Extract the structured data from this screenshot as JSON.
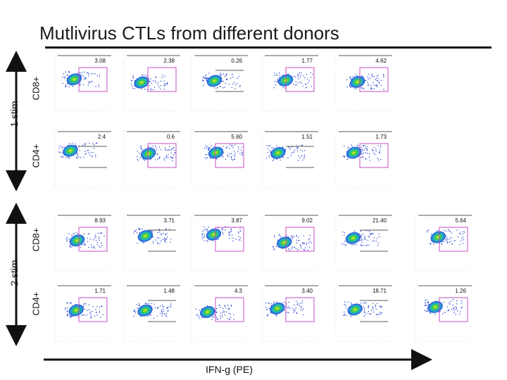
{
  "title": "Mutlivirus CTLs from different donors",
  "y_groups": [
    {
      "label": "1 stim",
      "rows": [
        "CD8+",
        "CD4+"
      ]
    },
    {
      "label": "2 stim",
      "rows": [
        "CD8+",
        "CD4+"
      ]
    }
  ],
  "x_axis_label": "IFN-g (PE)",
  "colors": {
    "gate": "#c03cc0",
    "dots": "#2040d0",
    "core_mid": "#22c060",
    "core_hot": "#e0e020",
    "arrow": "#111111"
  },
  "chart_data": {
    "type": "scatter",
    "title": "Mutlivirus CTLs from different donors",
    "xlabel": "IFN-g (PE)",
    "ylabel": "",
    "panels": [
      {
        "group": "1 stim",
        "row": "CD8+",
        "col": 1,
        "gate_percent": "3.08"
      },
      {
        "group": "1 stim",
        "row": "CD8+",
        "col": 2,
        "gate_percent": "2.38"
      },
      {
        "group": "1 stim",
        "row": "CD8+",
        "col": 3,
        "gate_percent": "0.26"
      },
      {
        "group": "1 stim",
        "row": "CD8+",
        "col": 4,
        "gate_percent": "1.77"
      },
      {
        "group": "1 stim",
        "row": "CD8+",
        "col": 5,
        "gate_percent": "4.62"
      },
      {
        "group": "1 stim",
        "row": "CD4+",
        "col": 1,
        "gate_percent": "2.4"
      },
      {
        "group": "1 stim",
        "row": "CD4+",
        "col": 2,
        "gate_percent": "0.6"
      },
      {
        "group": "1 stim",
        "row": "CD4+",
        "col": 3,
        "gate_percent": "5.60"
      },
      {
        "group": "1 stim",
        "row": "CD4+",
        "col": 4,
        "gate_percent": "1.51"
      },
      {
        "group": "1 stim",
        "row": "CD4+",
        "col": 5,
        "gate_percent": "1.73"
      },
      {
        "group": "2 stim",
        "row": "CD8+",
        "col": 1,
        "gate_percent": "8.93"
      },
      {
        "group": "2 stim",
        "row": "CD8+",
        "col": 2,
        "gate_percent": "3.71"
      },
      {
        "group": "2 stim",
        "row": "CD8+",
        "col": 3,
        "gate_percent": "3.87"
      },
      {
        "group": "2 stim",
        "row": "CD8+",
        "col": 4,
        "gate_percent": "9.02"
      },
      {
        "group": "2 stim",
        "row": "CD8+",
        "col": 5,
        "gate_percent": "21.40"
      },
      {
        "group": "2 stim",
        "row": "CD8+",
        "col": 6,
        "gate_percent": "5.64"
      },
      {
        "group": "2 stim",
        "row": "CD4+",
        "col": 1,
        "gate_percent": "1.71"
      },
      {
        "group": "2 stim",
        "row": "CD4+",
        "col": 2,
        "gate_percent": "1.48"
      },
      {
        "group": "2 stim",
        "row": "CD4+",
        "col": 3,
        "gate_percent": "4.3"
      },
      {
        "group": "2 stim",
        "row": "CD4+",
        "col": 4,
        "gate_percent": "3.40"
      },
      {
        "group": "2 stim",
        "row": "CD4+",
        "col": 5,
        "gate_percent": "18.71"
      },
      {
        "group": "2 stim",
        "row": "CD4+",
        "col": 6,
        "gate_percent": "1.26"
      }
    ]
  }
}
